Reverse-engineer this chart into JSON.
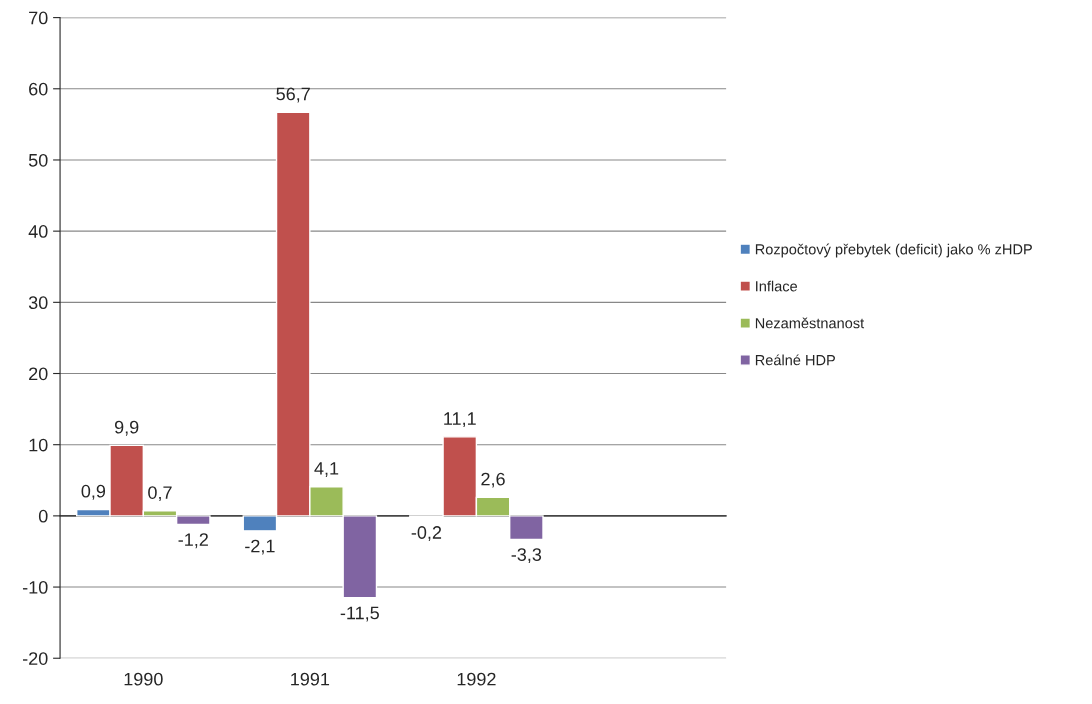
{
  "chart_data": {
    "type": "bar",
    "categories": [
      "1990",
      "1991",
      "1992",
      null
    ],
    "series": [
      {
        "name": "Rozpočtový přebytek (deficit) jako % zHDP",
        "color": "#4f81bd",
        "values": [
          0.9,
          -2.1,
          -0.2,
          null
        ],
        "value_labels": [
          "0,9",
          "-2,1",
          "-0,2",
          null
        ]
      },
      {
        "name": "Inflace",
        "color": "#c0504d",
        "values": [
          9.9,
          56.7,
          11.1,
          null
        ],
        "value_labels": [
          "9,9",
          "56,7",
          "11,1",
          null
        ]
      },
      {
        "name": "Nezaměstnanost",
        "color": "#9bbb59",
        "values": [
          0.7,
          4.1,
          2.6,
          null
        ],
        "value_labels": [
          "0,7",
          "4,1",
          "2,6",
          null
        ]
      },
      {
        "name": "Reálné HDP",
        "color": "#8064a2",
        "values": [
          -1.2,
          -11.5,
          -3.3,
          null
        ],
        "value_labels": [
          "-1,2",
          "-11,5",
          "-3,3",
          null
        ]
      }
    ],
    "ylim": [
      -20,
      70
    ],
    "yticks": [
      -20,
      -10,
      0,
      10,
      20,
      30,
      40,
      50,
      60,
      70
    ],
    "grid": "y",
    "legend": "right"
  }
}
